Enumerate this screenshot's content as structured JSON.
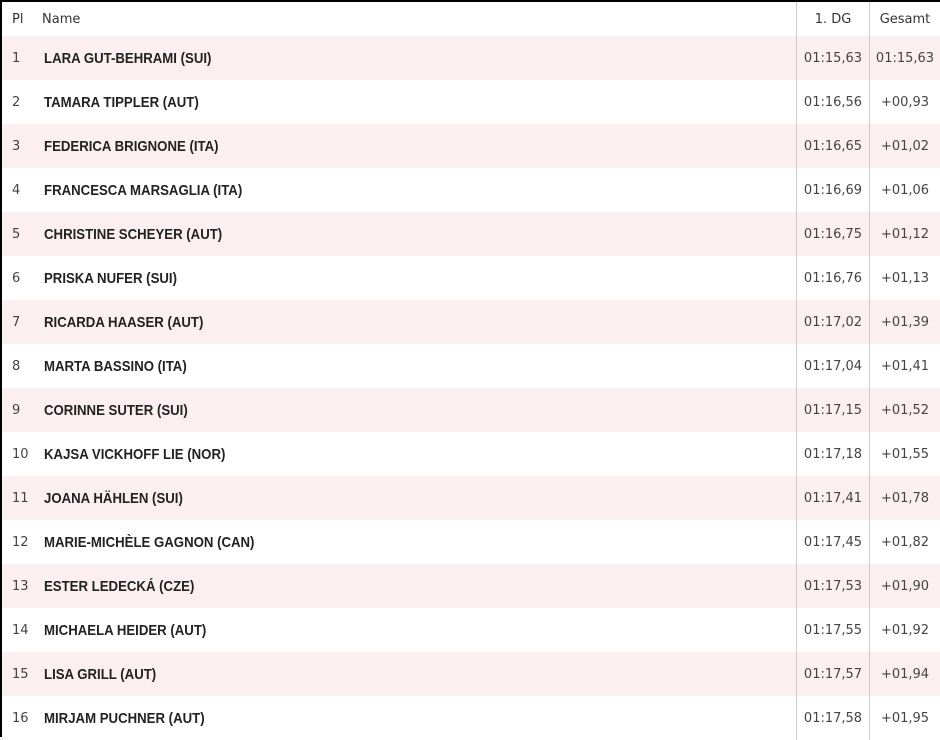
{
  "header": {
    "place": "Pl",
    "name": "Name",
    "run1": "1. DG",
    "total": "Gesamt"
  },
  "rows": [
    {
      "place": "1",
      "name": "LARA GUT-BEHRAMI (SUI)",
      "run1": "01:15,63",
      "total": "01:15,63"
    },
    {
      "place": "2",
      "name": "TAMARA TIPPLER (AUT)",
      "run1": "01:16,56",
      "total": "+00,93"
    },
    {
      "place": "3",
      "name": "FEDERICA BRIGNONE (ITA)",
      "run1": "01:16,65",
      "total": "+01,02"
    },
    {
      "place": "4",
      "name": "FRANCESCA MARSAGLIA (ITA)",
      "run1": "01:16,69",
      "total": "+01,06"
    },
    {
      "place": "5",
      "name": "CHRISTINE SCHEYER (AUT)",
      "run1": "01:16,75",
      "total": "+01,12"
    },
    {
      "place": "6",
      "name": "PRISKA NUFER (SUI)",
      "run1": "01:16,76",
      "total": "+01,13"
    },
    {
      "place": "7",
      "name": "RICARDA HAASER (AUT)",
      "run1": "01:17,02",
      "total": "+01,39"
    },
    {
      "place": "8",
      "name": "MARTA BASSINO (ITA)",
      "run1": "01:17,04",
      "total": "+01,41"
    },
    {
      "place": "9",
      "name": "CORINNE SUTER (SUI)",
      "run1": "01:17,15",
      "total": "+01,52"
    },
    {
      "place": "10",
      "name": "KAJSA VICKHOFF LIE (NOR)",
      "run1": "01:17,18",
      "total": "+01,55"
    },
    {
      "place": "11",
      "name": "JOANA HÄHLEN (SUI)",
      "run1": "01:17,41",
      "total": "+01,78"
    },
    {
      "place": "12",
      "name": "MARIE-MICHÈLE GAGNON (CAN)",
      "run1": "01:17,45",
      "total": "+01,82"
    },
    {
      "place": "13",
      "name": "ESTER LEDECKÁ (CZE)",
      "run1": "01:17,53",
      "total": "+01,90"
    },
    {
      "place": "14",
      "name": "MICHAELA HEIDER (AUT)",
      "run1": "01:17,55",
      "total": "+01,92"
    },
    {
      "place": "15",
      "name": "LISA GRILL (AUT)",
      "run1": "01:17,57",
      "total": "+01,94"
    },
    {
      "place": "16",
      "name": "MIRJAM PUCHNER (AUT)",
      "run1": "01:17,58",
      "total": "+01,95"
    }
  ]
}
